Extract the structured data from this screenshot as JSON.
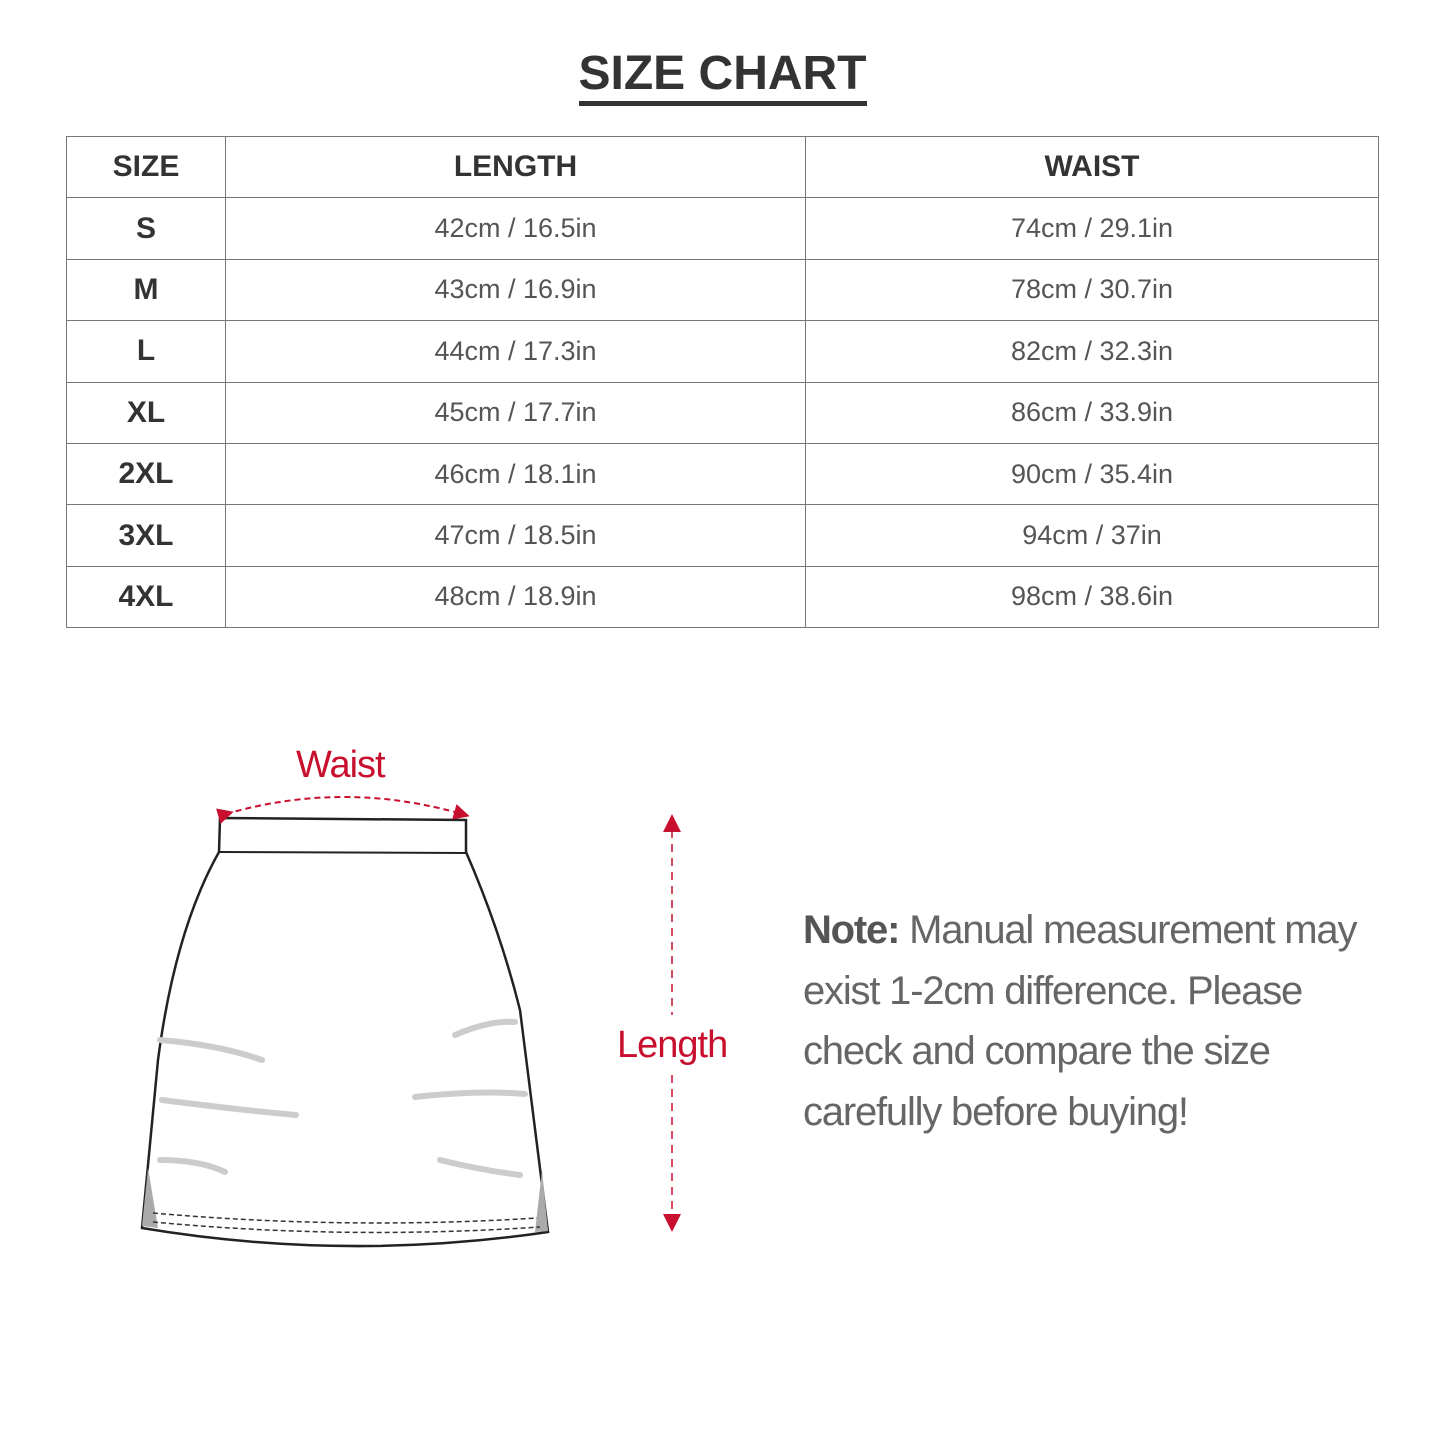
{
  "title": "SIZE CHART",
  "table": {
    "headers": [
      "SIZE",
      "LENGTH",
      "WAIST"
    ],
    "rows": [
      [
        "S",
        "42cm / 16.5in",
        "74cm / 29.1in"
      ],
      [
        "M",
        "43cm / 16.9in",
        "78cm / 30.7in"
      ],
      [
        "L",
        "44cm / 17.3in",
        "82cm / 32.3in"
      ],
      [
        "XL",
        "45cm / 17.7in",
        "86cm / 33.9in"
      ],
      [
        "2XL",
        "46cm / 18.1in",
        "90cm / 35.4in"
      ],
      [
        "3XL",
        "47cm / 18.5in",
        "94cm / 37in"
      ],
      [
        "4XL",
        "48cm / 18.9in",
        "98cm / 38.6in"
      ]
    ]
  },
  "illustration": {
    "waist_label": "Waist",
    "length_label": "Length",
    "accent_color": "#c8102e",
    "garment": "skirt"
  },
  "note": {
    "label": "Note:",
    "text": " Manual measurement may exist 1-2cm difference. Please check and compare the size carefully before buying!"
  }
}
